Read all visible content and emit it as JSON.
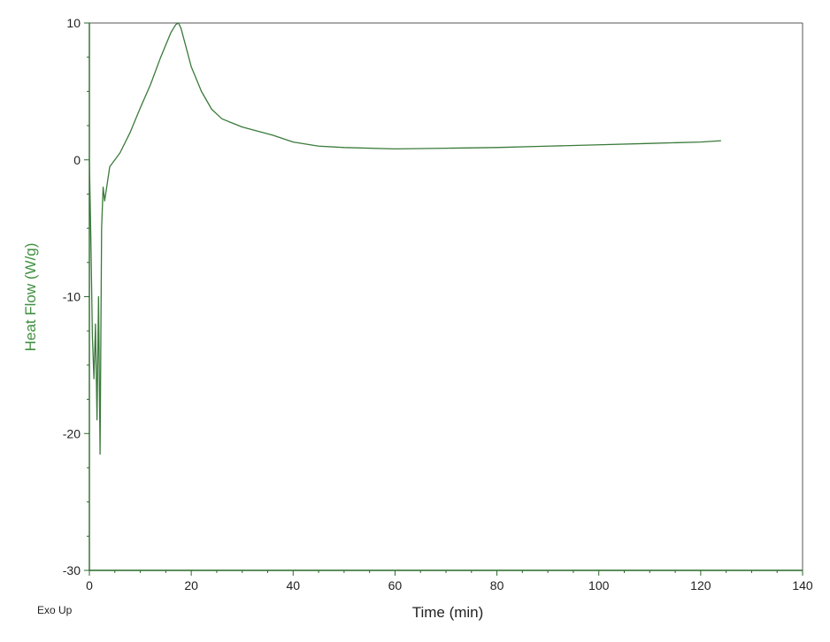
{
  "chart_data": {
    "type": "line",
    "title": "",
    "xlabel": "Time (min)",
    "ylabel": "Heat Flow (W/g)",
    "xlim": [
      0,
      140
    ],
    "ylim": [
      -30,
      10
    ],
    "xticks": [
      0,
      20,
      40,
      60,
      80,
      100,
      120,
      140
    ],
    "yticks": [
      -30,
      -20,
      -10,
      0,
      10
    ],
    "grid": false,
    "annotation": "Exo Up",
    "colors": {
      "series": "#3a7a3a",
      "ylabel": "#3f8f3f",
      "axes": "#2a6a2a",
      "frame": "#555555"
    },
    "series": [
      {
        "x": [
          0,
          0.3,
          0.6,
          0.9,
          1.2,
          1.5,
          1.8,
          2.1,
          2.4,
          2.7,
          3.0,
          4,
          5,
          6,
          8,
          10,
          12,
          14,
          16,
          17,
          17.5,
          18,
          19,
          20,
          22,
          24,
          26,
          28,
          30,
          33,
          36,
          40,
          45,
          50,
          60,
          70,
          80,
          90,
          100,
          110,
          120,
          124
        ],
        "y": [
          0,
          -6,
          -13,
          -16,
          -12,
          -19,
          -10,
          -21.5,
          -5,
          -2,
          -3,
          -0.5,
          0,
          0.5,
          2,
          3.8,
          5.5,
          7.5,
          9.3,
          9.9,
          10,
          9.6,
          8.2,
          6.8,
          5.0,
          3.7,
          3.0,
          2.7,
          2.4,
          2.1,
          1.8,
          1.3,
          1.0,
          0.9,
          0.8,
          0.85,
          0.9,
          1.0,
          1.1,
          1.2,
          1.3,
          1.4
        ]
      }
    ]
  }
}
